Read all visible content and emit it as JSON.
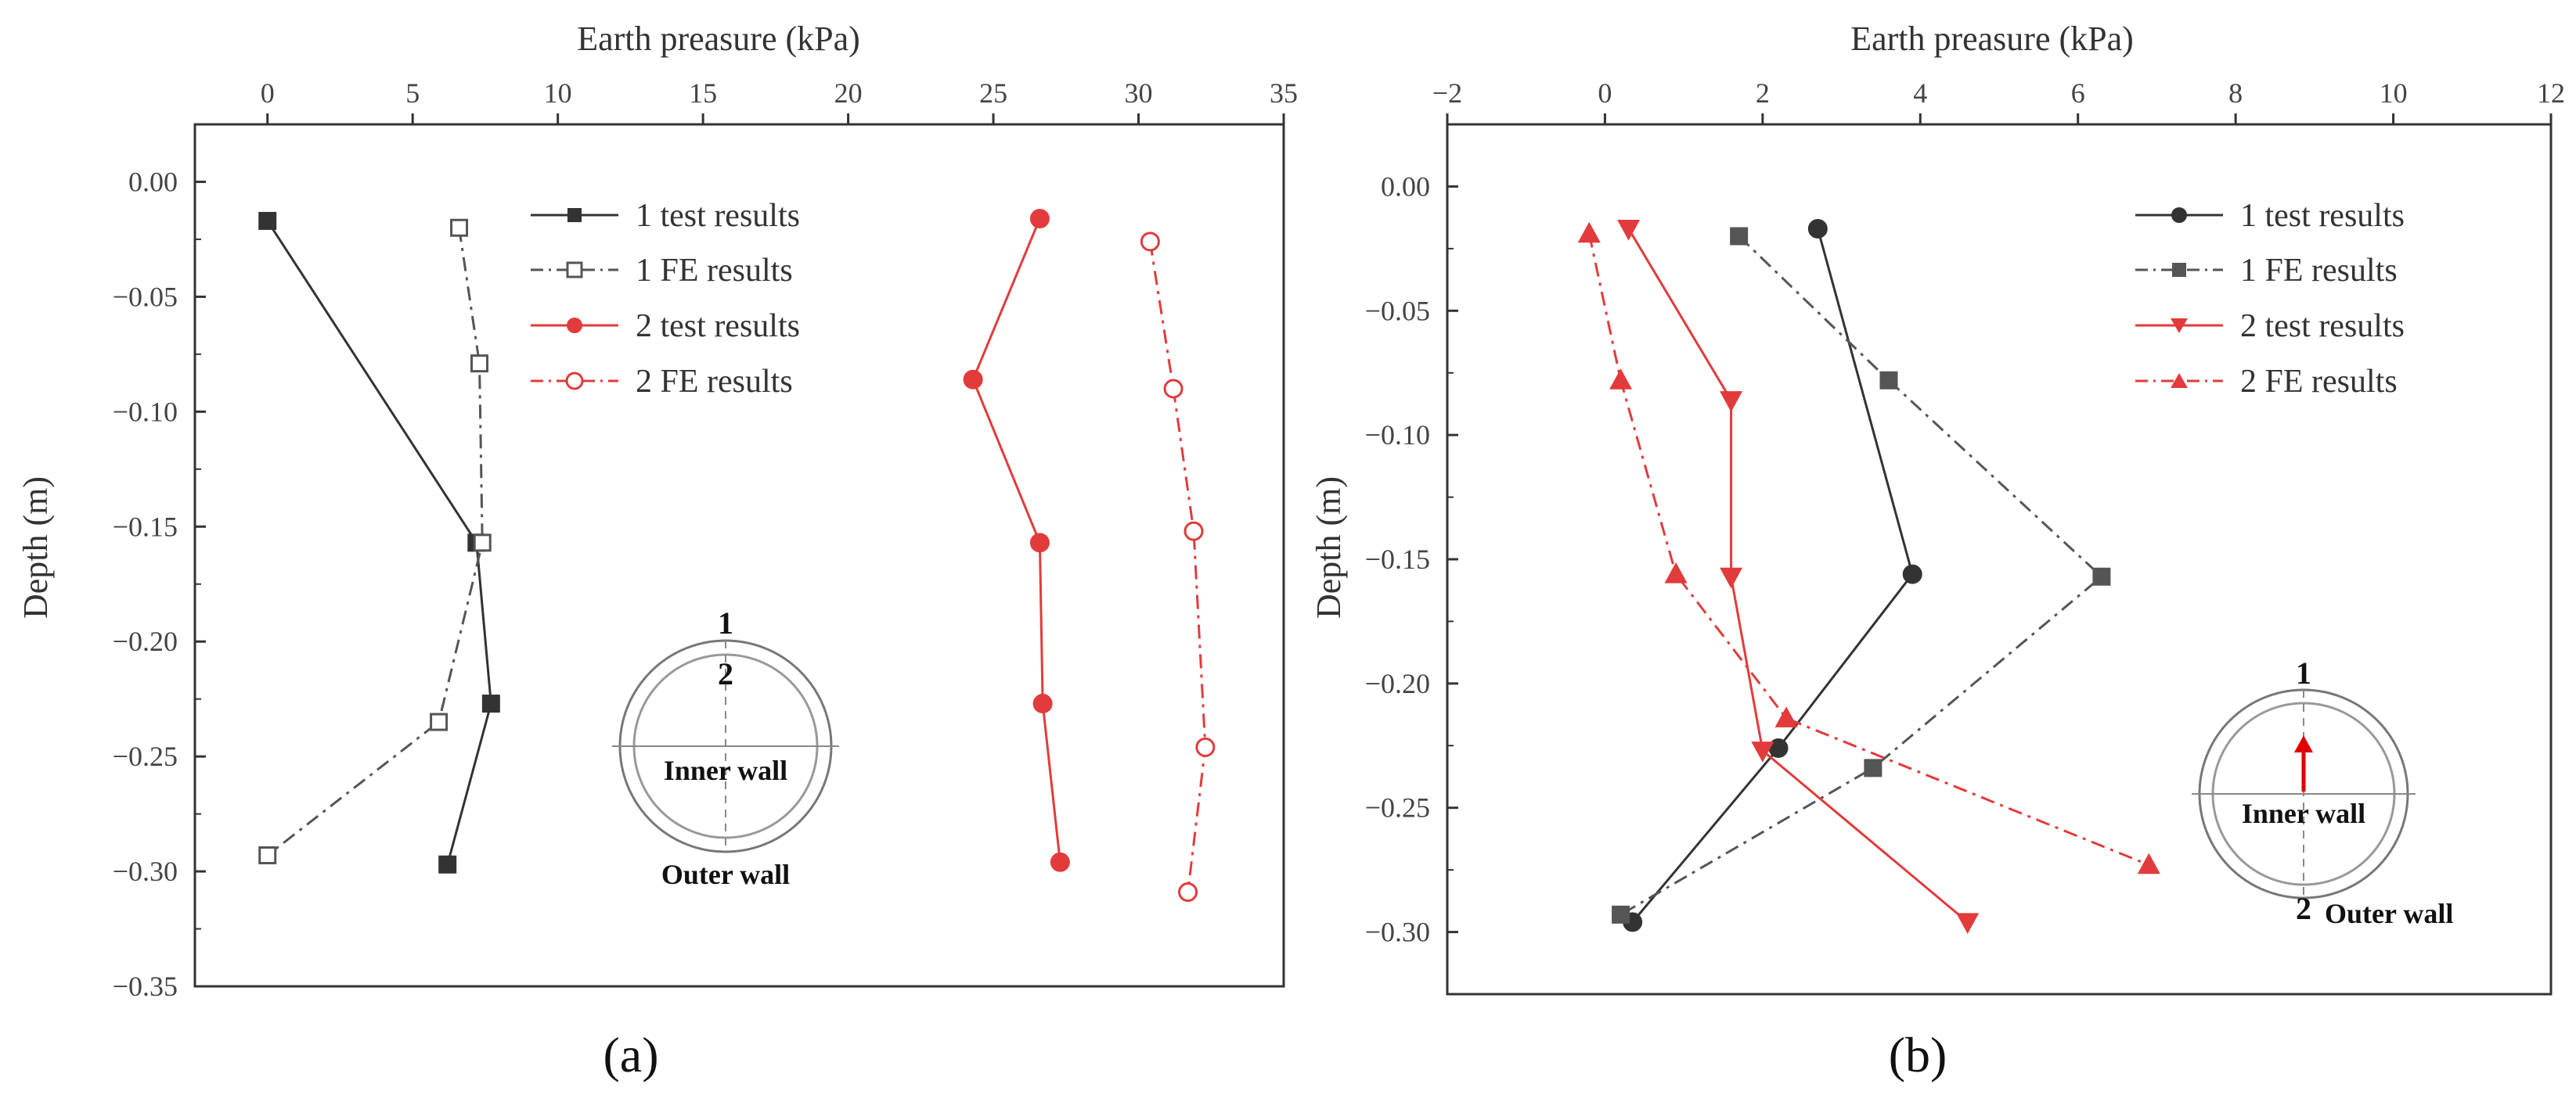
{
  "chart_data": [
    {
      "type": "line",
      "panel_label": "(a)",
      "xlabel": "Earth preasure (kPa)",
      "ylabel": "Depth (m)",
      "xlim": [
        -2.5,
        35
      ],
      "ylim": [
        -0.35,
        0.025
      ],
      "x_ticks": [
        0,
        5,
        10,
        15,
        20,
        25,
        30,
        35
      ],
      "x_tick_labels": [
        "0",
        "5",
        "10",
        "15",
        "20",
        "25",
        "30",
        "35"
      ],
      "y_ticks": [
        0.0,
        -0.05,
        -0.1,
        -0.15,
        -0.2,
        -0.25,
        -0.3,
        -0.35
      ],
      "y_tick_labels": [
        "0.00",
        "−0.05",
        "−0.10",
        "−0.15",
        "−0.20",
        "−0.25",
        "−0.30",
        "−0.35"
      ],
      "legend_position": "top-center",
      "series": [
        {
          "name": "1 test results",
          "color": "#333333",
          "dash": "solid",
          "marker": "square",
          "filled": true,
          "points": [
            [
              0.0,
              -0.017
            ],
            [
              7.2,
              -0.157
            ],
            [
              7.7,
              -0.227
            ],
            [
              6.2,
              -0.297
            ]
          ]
        },
        {
          "name": "1 FE results",
          "color": "#555555",
          "dash": "dashdot",
          "marker": "square",
          "filled": false,
          "points": [
            [
              6.6,
              -0.02
            ],
            [
              7.3,
              -0.079
            ],
            [
              7.4,
              -0.157
            ],
            [
              5.9,
              -0.235
            ],
            [
              0.0,
              -0.293
            ]
          ]
        },
        {
          "name": "2 test results",
          "color": "#e23b3b",
          "dash": "solid",
          "marker": "circle",
          "filled": true,
          "points": [
            [
              26.6,
              -0.016
            ],
            [
              24.3,
              -0.086
            ],
            [
              26.6,
              -0.157
            ],
            [
              26.7,
              -0.227
            ],
            [
              27.3,
              -0.296
            ]
          ]
        },
        {
          "name": "2 FE results",
          "color": "#e23b3b",
          "dash": "dashdot",
          "marker": "circle",
          "filled": false,
          "points": [
            [
              30.4,
              -0.026
            ],
            [
              31.2,
              -0.09
            ],
            [
              31.9,
              -0.152
            ],
            [
              32.3,
              -0.246
            ],
            [
              31.7,
              -0.309
            ]
          ]
        }
      ],
      "inset": {
        "top_number": "1",
        "inner_number": "2",
        "inner_label": "Inner wall",
        "outer_label": "Outer wall"
      }
    },
    {
      "type": "line",
      "panel_label": "(b)",
      "xlabel": "Earth preasure (kPa)",
      "ylabel": "Depth (m)",
      "xlim": [
        -2,
        12
      ],
      "ylim": [
        -0.325,
        0.025
      ],
      "x_ticks": [
        -2,
        0,
        2,
        4,
        6,
        8,
        10,
        12
      ],
      "x_tick_labels": [
        "−2",
        "0",
        "2",
        "4",
        "6",
        "8",
        "10",
        "12"
      ],
      "y_ticks": [
        0.0,
        -0.05,
        -0.1,
        -0.15,
        -0.2,
        -0.25,
        -0.3
      ],
      "y_tick_labels": [
        "0.00",
        "−0.05",
        "−0.10",
        "−0.15",
        "−0.20",
        "−0.25",
        "−0.30"
      ],
      "legend_position": "top-right",
      "series": [
        {
          "name": "1 test results",
          "color": "#333333",
          "dash": "solid",
          "marker": "circle",
          "filled": true,
          "points": [
            [
              2.7,
              -0.017
            ],
            [
              3.9,
              -0.156
            ],
            [
              2.2,
              -0.226
            ],
            [
              0.35,
              -0.296
            ]
          ]
        },
        {
          "name": "1 FE results",
          "color": "#555555",
          "dash": "dashdot",
          "marker": "square",
          "filled": true,
          "points": [
            [
              1.7,
              -0.02
            ],
            [
              3.6,
              -0.078
            ],
            [
              6.3,
              -0.157
            ],
            [
              3.4,
              -0.234
            ],
            [
              0.2,
              -0.293
            ]
          ]
        },
        {
          "name": "2 test results",
          "color": "#e23b3b",
          "dash": "solid",
          "marker": "triangle-down",
          "filled": true,
          "points": [
            [
              0.3,
              -0.017
            ],
            [
              1.6,
              -0.086
            ],
            [
              1.6,
              -0.157
            ],
            [
              2.0,
              -0.227
            ],
            [
              4.6,
              -0.296
            ]
          ]
        },
        {
          "name": "2 FE results",
          "color": "#e23b3b",
          "dash": "dashdot",
          "marker": "triangle-up",
          "filled": true,
          "points": [
            [
              -0.2,
              -0.019
            ],
            [
              0.2,
              -0.078
            ],
            [
              0.9,
              -0.156
            ],
            [
              2.3,
              -0.214
            ],
            [
              6.9,
              -0.273
            ]
          ]
        }
      ],
      "inset": {
        "top_number": "1",
        "bottom_number": "2",
        "inner_label": "Inner wall",
        "outer_label": "Outer wall"
      }
    }
  ]
}
